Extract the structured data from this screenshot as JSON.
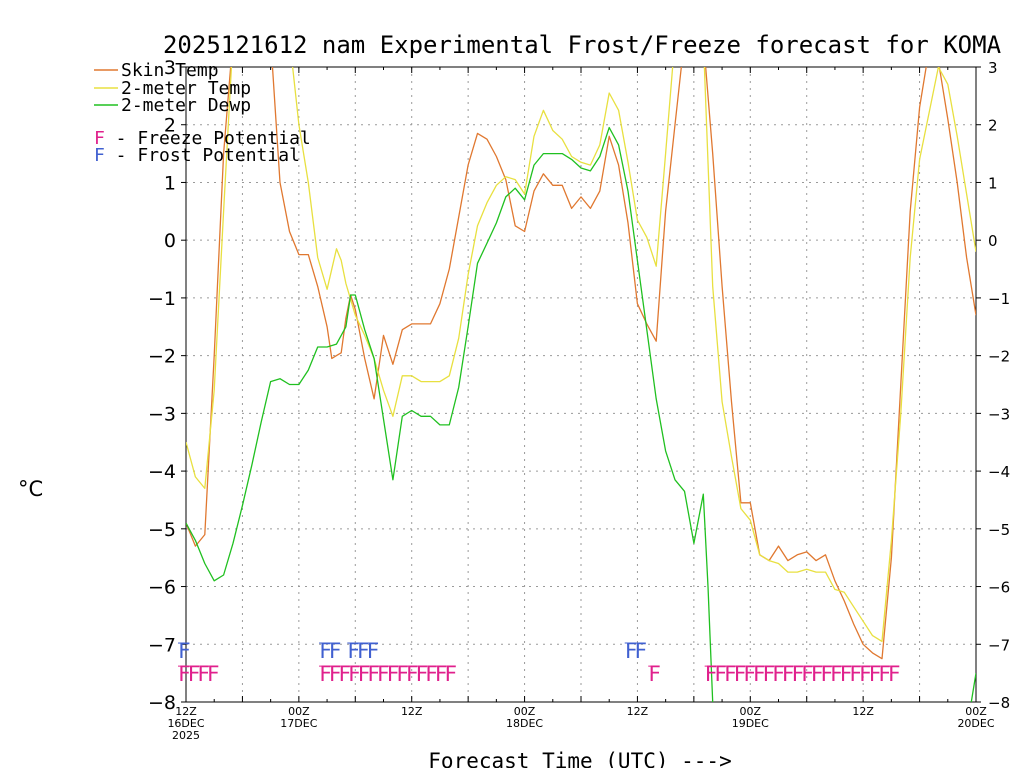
{
  "chart_data": {
    "type": "line",
    "title": "2025121612 nam Experimental Frost/Freeze forecast for KOMA",
    "ylabel": "°C",
    "xlabel": "Forecast Time (UTC) --->",
    "ylim": [
      -8,
      3
    ],
    "xlim": [
      0,
      84
    ],
    "grid": true,
    "y_ticks": [
      -8,
      -7,
      -6,
      -5,
      -4,
      -3,
      -2,
      -1,
      0,
      1,
      2,
      3
    ],
    "x_ticks": [
      {
        "x": 0,
        "label": "12Z",
        "sub": "16DEC",
        "sub2": "2025"
      },
      {
        "x": 12,
        "label": "00Z",
        "sub": "17DEC",
        "sub2": ""
      },
      {
        "x": 24,
        "label": "12Z",
        "sub": "",
        "sub2": ""
      },
      {
        "x": 36,
        "label": "00Z",
        "sub": "18DEC",
        "sub2": ""
      },
      {
        "x": 48,
        "label": "12Z",
        "sub": "",
        "sub2": ""
      },
      {
        "x": 60,
        "label": "00Z",
        "sub": "19DEC",
        "sub2": ""
      },
      {
        "x": 72,
        "label": "12Z",
        "sub": "",
        "sub2": ""
      },
      {
        "x": 84,
        "label": "00Z",
        "sub": "20DEC",
        "sub2": ""
      }
    ],
    "series": [
      {
        "name": "Skin Temp",
        "color": "#e07830",
        "points": [
          [
            0,
            -4.9
          ],
          [
            1,
            -5.3
          ],
          [
            2,
            -5.1
          ],
          [
            3,
            -2.0
          ],
          [
            4,
            1.5
          ],
          [
            5,
            3.5
          ],
          [
            9,
            3.5
          ],
          [
            10,
            1.0
          ],
          [
            11,
            0.15
          ],
          [
            12,
            -0.25
          ],
          [
            13,
            -0.25
          ],
          [
            14,
            -0.8
          ],
          [
            15,
            -1.5
          ],
          [
            15.5,
            -2.05
          ],
          [
            16,
            -2.0
          ],
          [
            16.5,
            -1.95
          ],
          [
            17,
            -1.35
          ],
          [
            17.5,
            -0.95
          ],
          [
            18,
            -1.2
          ],
          [
            19,
            -2.05
          ],
          [
            20,
            -2.75
          ],
          [
            21,
            -1.65
          ],
          [
            22,
            -2.15
          ],
          [
            23,
            -1.55
          ],
          [
            24,
            -1.45
          ],
          [
            25,
            -1.45
          ],
          [
            26,
            -1.45
          ],
          [
            27,
            -1.1
          ],
          [
            28,
            -0.5
          ],
          [
            29,
            0.4
          ],
          [
            30,
            1.3
          ],
          [
            31,
            1.85
          ],
          [
            32,
            1.75
          ],
          [
            33,
            1.45
          ],
          [
            34,
            1.05
          ],
          [
            35,
            0.25
          ],
          [
            36,
            0.15
          ],
          [
            37,
            0.85
          ],
          [
            38,
            1.15
          ],
          [
            39,
            0.95
          ],
          [
            40,
            0.95
          ],
          [
            41,
            0.55
          ],
          [
            42,
            0.75
          ],
          [
            43,
            0.55
          ],
          [
            44,
            0.85
          ],
          [
            45,
            1.8
          ],
          [
            46,
            1.3
          ],
          [
            47,
            0.3
          ],
          [
            48,
            -1.1
          ],
          [
            49,
            -1.45
          ],
          [
            50,
            -1.75
          ],
          [
            51,
            0.5
          ],
          [
            52,
            2.0
          ],
          [
            53,
            3.5
          ],
          [
            55,
            3.5
          ],
          [
            56,
            1.5
          ],
          [
            57,
            -0.8
          ],
          [
            58,
            -2.8
          ],
          [
            59,
            -4.55
          ],
          [
            60,
            -4.55
          ],
          [
            61,
            -5.45
          ],
          [
            62,
            -5.55
          ],
          [
            63,
            -5.3
          ],
          [
            64,
            -5.55
          ],
          [
            65,
            -5.45
          ],
          [
            66,
            -5.4
          ],
          [
            67,
            -5.55
          ],
          [
            68,
            -5.45
          ],
          [
            69,
            -5.9
          ],
          [
            70,
            -6.25
          ],
          [
            71,
            -6.65
          ],
          [
            72,
            -7.0
          ],
          [
            73,
            -7.15
          ],
          [
            74,
            -7.25
          ],
          [
            75,
            -5.5
          ],
          [
            76,
            -2.5
          ],
          [
            77,
            0.5
          ],
          [
            78,
            2.3
          ],
          [
            79,
            3.3
          ],
          [
            80,
            3.1
          ],
          [
            81,
            2.1
          ],
          [
            82,
            1.0
          ],
          [
            83,
            -0.3
          ],
          [
            84,
            -1.3
          ]
        ]
      },
      {
        "name": "2-meter Temp",
        "color": "#e8e040",
        "points": [
          [
            0,
            -3.5
          ],
          [
            1,
            -4.1
          ],
          [
            2,
            -4.3
          ],
          [
            3,
            -2.6
          ],
          [
            4,
            0.5
          ],
          [
            5,
            3.5
          ],
          [
            11,
            3.5
          ],
          [
            12,
            2.0
          ],
          [
            13,
            1.0
          ],
          [
            14,
            -0.3
          ],
          [
            15,
            -0.85
          ],
          [
            16,
            -0.15
          ],
          [
            16.5,
            -0.35
          ],
          [
            17,
            -0.75
          ],
          [
            18,
            -1.3
          ],
          [
            19,
            -1.65
          ],
          [
            20,
            -2.05
          ],
          [
            21,
            -2.6
          ],
          [
            22,
            -3.05
          ],
          [
            23,
            -2.35
          ],
          [
            24,
            -2.35
          ],
          [
            25,
            -2.45
          ],
          [
            26,
            -2.45
          ],
          [
            27,
            -2.45
          ],
          [
            28,
            -2.35
          ],
          [
            29,
            -1.7
          ],
          [
            30,
            -0.6
          ],
          [
            31,
            0.25
          ],
          [
            32,
            0.65
          ],
          [
            33,
            0.95
          ],
          [
            34,
            1.1
          ],
          [
            35,
            1.05
          ],
          [
            36,
            0.8
          ],
          [
            37,
            1.8
          ],
          [
            38,
            2.25
          ],
          [
            39,
            1.9
          ],
          [
            40,
            1.75
          ],
          [
            41,
            1.45
          ],
          [
            42,
            1.35
          ],
          [
            43,
            1.3
          ],
          [
            44,
            1.65
          ],
          [
            45,
            2.55
          ],
          [
            46,
            2.25
          ],
          [
            47,
            1.35
          ],
          [
            48,
            0.35
          ],
          [
            49,
            0.05
          ],
          [
            50,
            -0.45
          ],
          [
            51,
            1.5
          ],
          [
            52,
            3.5
          ],
          [
            55,
            3.5
          ],
          [
            56,
            -0.8
          ],
          [
            57,
            -2.8
          ],
          [
            58,
            -3.75
          ],
          [
            59,
            -4.65
          ],
          [
            60,
            -4.85
          ],
          [
            61,
            -5.45
          ],
          [
            62,
            -5.55
          ],
          [
            63,
            -5.6
          ],
          [
            64,
            -5.75
          ],
          [
            65,
            -5.75
          ],
          [
            66,
            -5.7
          ],
          [
            67,
            -5.75
          ],
          [
            68,
            -5.75
          ],
          [
            69,
            -6.05
          ],
          [
            70,
            -6.1
          ],
          [
            71,
            -6.35
          ],
          [
            72,
            -6.6
          ],
          [
            73,
            -6.85
          ],
          [
            74,
            -6.95
          ],
          [
            75,
            -5.2
          ],
          [
            76,
            -3.0
          ],
          [
            77,
            -0.3
          ],
          [
            78,
            1.4
          ],
          [
            79,
            2.2
          ],
          [
            80,
            3.0
          ],
          [
            81,
            2.7
          ],
          [
            82,
            1.8
          ],
          [
            83,
            0.8
          ],
          [
            84,
            -0.2
          ]
        ]
      },
      {
        "name": "2-meter Dewp",
        "color": "#20c020",
        "points": [
          [
            0,
            -4.9
          ],
          [
            1,
            -5.2
          ],
          [
            2,
            -5.6
          ],
          [
            3,
            -5.9
          ],
          [
            4,
            -5.8
          ],
          [
            5,
            -5.25
          ],
          [
            6,
            -4.6
          ],
          [
            7,
            -3.9
          ],
          [
            8,
            -3.15
          ],
          [
            9,
            -2.45
          ],
          [
            10,
            -2.4
          ],
          [
            11,
            -2.5
          ],
          [
            12,
            -2.5
          ],
          [
            13,
            -2.25
          ],
          [
            14,
            -1.85
          ],
          [
            15,
            -1.85
          ],
          [
            16,
            -1.8
          ],
          [
            17,
            -1.5
          ],
          [
            17.5,
            -0.95
          ],
          [
            18,
            -0.95
          ],
          [
            19,
            -1.55
          ],
          [
            20,
            -2.05
          ],
          [
            21,
            -3.1
          ],
          [
            22,
            -4.15
          ],
          [
            23,
            -3.05
          ],
          [
            24,
            -2.95
          ],
          [
            25,
            -3.05
          ],
          [
            26,
            -3.05
          ],
          [
            27,
            -3.2
          ],
          [
            28,
            -3.2
          ],
          [
            29,
            -2.55
          ],
          [
            30,
            -1.5
          ],
          [
            31,
            -0.4
          ],
          [
            32,
            -0.05
          ],
          [
            33,
            0.3
          ],
          [
            34,
            0.75
          ],
          [
            35,
            0.9
          ],
          [
            36,
            0.7
          ],
          [
            37,
            1.3
          ],
          [
            38,
            1.5
          ],
          [
            39,
            1.5
          ],
          [
            40,
            1.5
          ],
          [
            41,
            1.4
          ],
          [
            42,
            1.25
          ],
          [
            43,
            1.2
          ],
          [
            44,
            1.45
          ],
          [
            45,
            1.95
          ],
          [
            46,
            1.65
          ],
          [
            47,
            0.85
          ],
          [
            48,
            -0.35
          ],
          [
            49,
            -1.55
          ],
          [
            50,
            -2.75
          ],
          [
            51,
            -3.65
          ],
          [
            52,
            -4.15
          ],
          [
            53,
            -4.35
          ],
          [
            54,
            -5.25
          ],
          [
            55,
            -4.4
          ],
          [
            55.5,
            -6.0
          ],
          [
            56,
            -8.0
          ]
        ]
      },
      {
        "name": "2-meter Dewp tail",
        "color": "#20c020",
        "points": [
          [
            83.5,
            -8.0
          ],
          [
            84,
            -7.5
          ]
        ]
      }
    ],
    "legend": [
      {
        "label": "Skin Temp",
        "color": "#e07830"
      },
      {
        "label": "2-meter Temp",
        "color": "#e8e040"
      },
      {
        "label": "2-meter Dewp",
        "color": "#20c020"
      }
    ],
    "markers": {
      "freeze": {
        "legend_label": "F - Freeze Potential",
        "color": "#e0208c",
        "level": -7.5,
        "marks": [
          {
            "x": 0,
            "text": "FFFF"
          },
          {
            "x": 15,
            "text": "FFFFFFFFFFFFFF"
          },
          {
            "x": 50,
            "text": "F"
          },
          {
            "x": 56,
            "text": "FFFFFFFFFFFFFFFFFFFF"
          }
        ]
      },
      "frost": {
        "legend_label": "F - Frost Potential",
        "color": "#4060d0",
        "level": -7.1,
        "marks": [
          {
            "x": 0,
            "text": "F"
          },
          {
            "x": 15,
            "text": "FF"
          },
          {
            "x": 18,
            "text": "FFF"
          },
          {
            "x": 47.5,
            "text": "FF"
          }
        ]
      }
    }
  }
}
